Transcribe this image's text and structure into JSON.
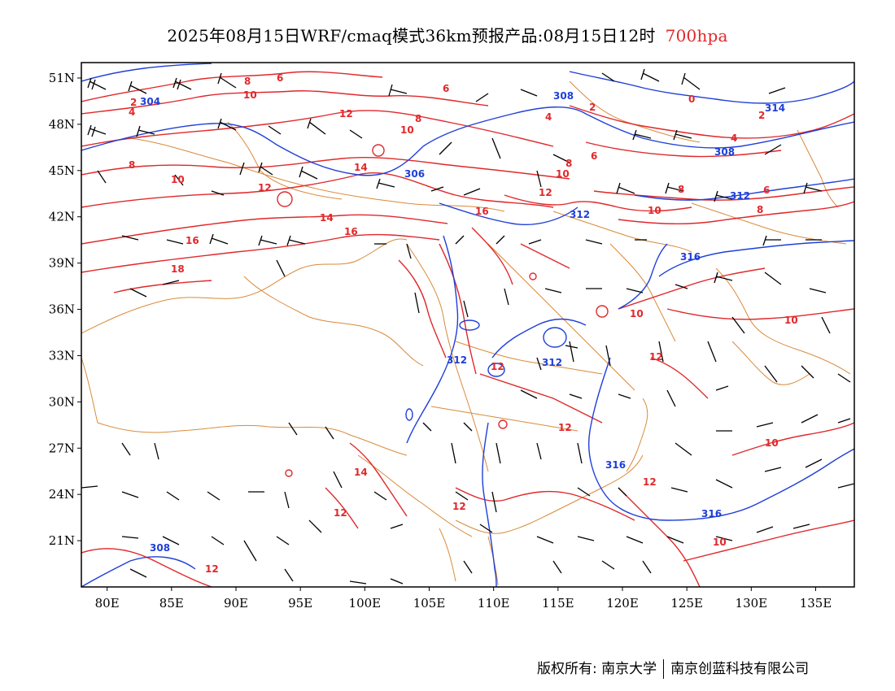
{
  "title": {
    "main": "2025年08月15日WRF/cmaq模式36km预报产品:08月15日12时",
    "level": "700hpa",
    "level_color": "#e0282b"
  },
  "map": {
    "lat_labels": [
      "51N",
      "48N",
      "45N",
      "42N",
      "39N",
      "36N",
      "33N",
      "30N",
      "27N",
      "24N",
      "21N"
    ],
    "lon_labels": [
      "80E",
      "85E",
      "90E",
      "95E",
      "100E",
      "105E",
      "110E",
      "115E",
      "120E",
      "125E",
      "130E",
      "135E"
    ],
    "lon_range": [
      78,
      138
    ],
    "lat_range": [
      18,
      52
    ],
    "colors": {
      "temperature": "#e0282b",
      "geopotential": "#1f3fd8",
      "border": "#d98a3a",
      "wind": "#000000"
    },
    "temperature_labels": [
      "2",
      "4",
      "6",
      "8",
      "10",
      "12",
      "14",
      "16",
      "18",
      "0"
    ],
    "geopotential_labels": [
      "304",
      "306",
      "308",
      "312",
      "314",
      "316"
    ]
  },
  "footer": {
    "left": "版权所有: 南京大学",
    "right": "南京创蓝科技有限公司"
  }
}
